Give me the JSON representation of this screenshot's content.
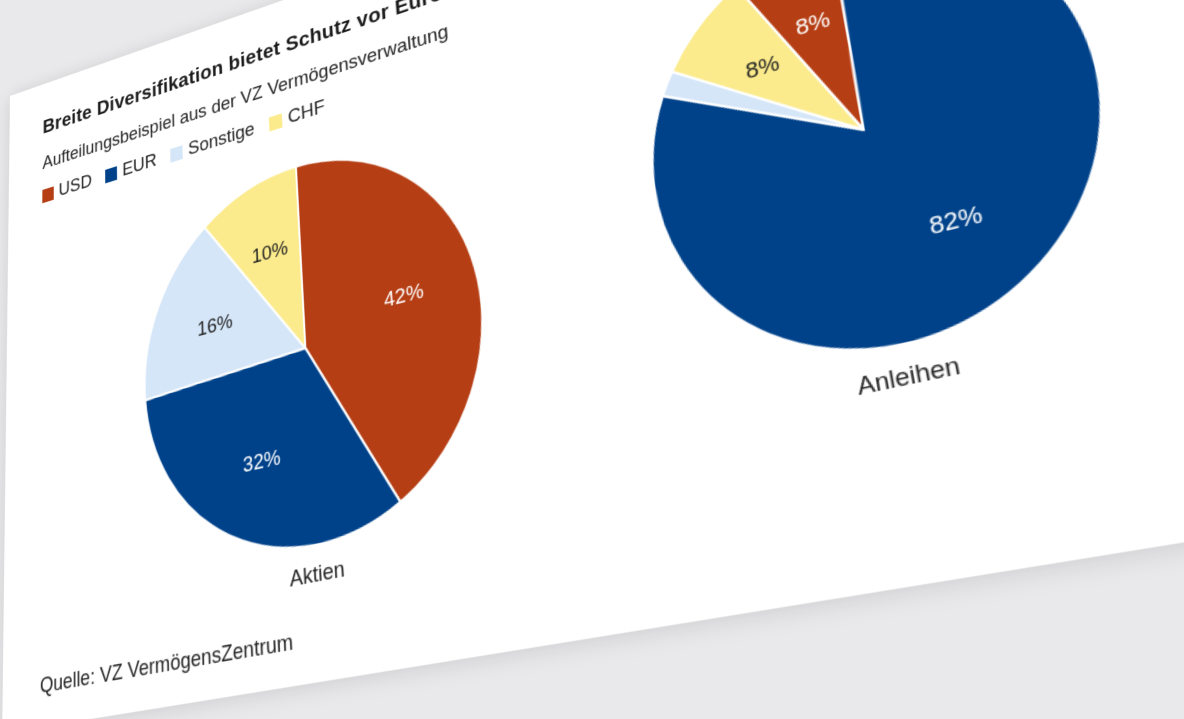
{
  "header": {
    "title": "Breite Diversifikation bietet Schutz vor Euro-Schwäche und Währungsverlusten",
    "subtitle": "Aufteilungsbeispiel aus der VZ Vermögensverwaltung"
  },
  "legend": [
    {
      "label": "USD",
      "color": "#b53e14"
    },
    {
      "label": "EUR",
      "color": "#00428a"
    },
    {
      "label": "Sonstige",
      "color": "#d5e6f8"
    },
    {
      "label": "CHF",
      "color": "#fbeb8c"
    }
  ],
  "chart_data": [
    {
      "type": "pie",
      "xlabel": "Aktien",
      "slices": [
        {
          "name": "USD",
          "value": 42,
          "label": "42%",
          "color": "#b53e14",
          "label_color": "#ffffff"
        },
        {
          "name": "EUR",
          "value": 32,
          "label": "32%",
          "color": "#00428a",
          "label_color": "#ffffff"
        },
        {
          "name": "Sonstige",
          "value": 16,
          "label": "16%",
          "color": "#d5e6f8",
          "label_color": "#222222"
        },
        {
          "name": "CHF",
          "value": 10,
          "label": "10%",
          "color": "#fbeb8c",
          "label_color": "#222222"
        }
      ]
    },
    {
      "type": "pie",
      "xlabel": "Anleihen",
      "slices": [
        {
          "name": "USD",
          "value": 8,
          "label": "8%",
          "color": "#b53e14",
          "label_color": "#ffffff"
        },
        {
          "name": "EUR",
          "value": 82,
          "label": "82%",
          "color": "#00428a",
          "label_color": "#ffffff"
        },
        {
          "name": "Sonstige",
          "value": 2,
          "label": "",
          "color": "#d5e6f8",
          "label_color": "#222222"
        },
        {
          "name": "CHF",
          "value": 8,
          "label": "8%",
          "color": "#fbeb8c",
          "label_color": "#222222"
        }
      ]
    }
  ],
  "footer": {
    "source": "Quelle: VZ VermögensZentrum"
  }
}
